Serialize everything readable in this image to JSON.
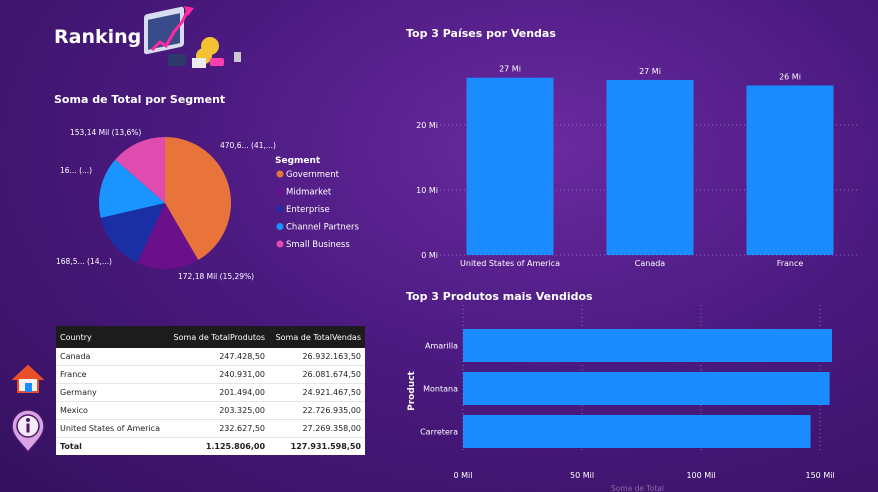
{
  "page": {
    "title": "Ranking"
  },
  "pie": {
    "title": "Soma de Total por Segment",
    "legend_title": "Segment",
    "chart_data": {
      "type": "pie",
      "title": "Soma de Total por Segment",
      "segments": [
        "Government",
        "Midmarket",
        "Enterprise",
        "Channel Partners",
        "Small Business"
      ],
      "values_pct": [
        41.6,
        15.29,
        14.5,
        15.0,
        13.6
      ],
      "labels": [
        "470,6... (41,...)",
        "172,18 Mil (15,29%)",
        "168,5... (14,...)",
        "16... (...)",
        "153,14 Mil (13,6%)"
      ],
      "colors": [
        "#e8743b",
        "#6b0f8a",
        "#1b2fa5",
        "#1a95ff",
        "#e04bb0"
      ]
    }
  },
  "bar_countries": {
    "title": "Top 3 Países por Vendas",
    "chart_data": {
      "type": "bar",
      "categories": [
        "United States of America",
        "Canada",
        "France"
      ],
      "values": [
        27.27,
        26.93,
        26.08
      ],
      "data_labels": [
        "27 Mi",
        "27 Mi",
        "26 Mi"
      ],
      "yticks": [
        "0 Mi",
        "10 Mi",
        "20 Mi"
      ],
      "ylim": [
        0,
        30
      ],
      "color": "#1a8cff"
    }
  },
  "bar_products": {
    "title": "Top 3 Produtos mais Vendidos",
    "chart_data": {
      "type": "bar",
      "orientation": "horizontal",
      "categories": [
        "Amarilla",
        "Montana",
        "Carretera"
      ],
      "values": [
        155,
        154,
        146
      ],
      "ylabel": "Product",
      "xlabel": "Soma de Total",
      "xticks": [
        "0 Mil",
        "50 Mil",
        "100 Mil",
        "150 Mil"
      ],
      "xlim": [
        0,
        155
      ],
      "color": "#1a8cff"
    }
  },
  "table": {
    "headers": [
      "Country",
      "Soma de TotalProdutos",
      "Soma de TotalVendas"
    ],
    "rows": [
      [
        "Canada",
        "247.428,50",
        "26.932.163,50"
      ],
      [
        "France",
        "240.931,00",
        "26.081.674,50"
      ],
      [
        "Germany",
        "201.494,00",
        "24.921.467,50"
      ],
      [
        "Mexico",
        "203.325,00",
        "22.726.935,00"
      ],
      [
        "United States of America",
        "232.627,50",
        "27.269.358,00"
      ]
    ],
    "total": [
      "Total",
      "1.125.806,00",
      "127.931.598,50"
    ]
  },
  "icons": {
    "home": "home-icon",
    "info": "info-icon",
    "hero": "finance-illustration-icon"
  }
}
